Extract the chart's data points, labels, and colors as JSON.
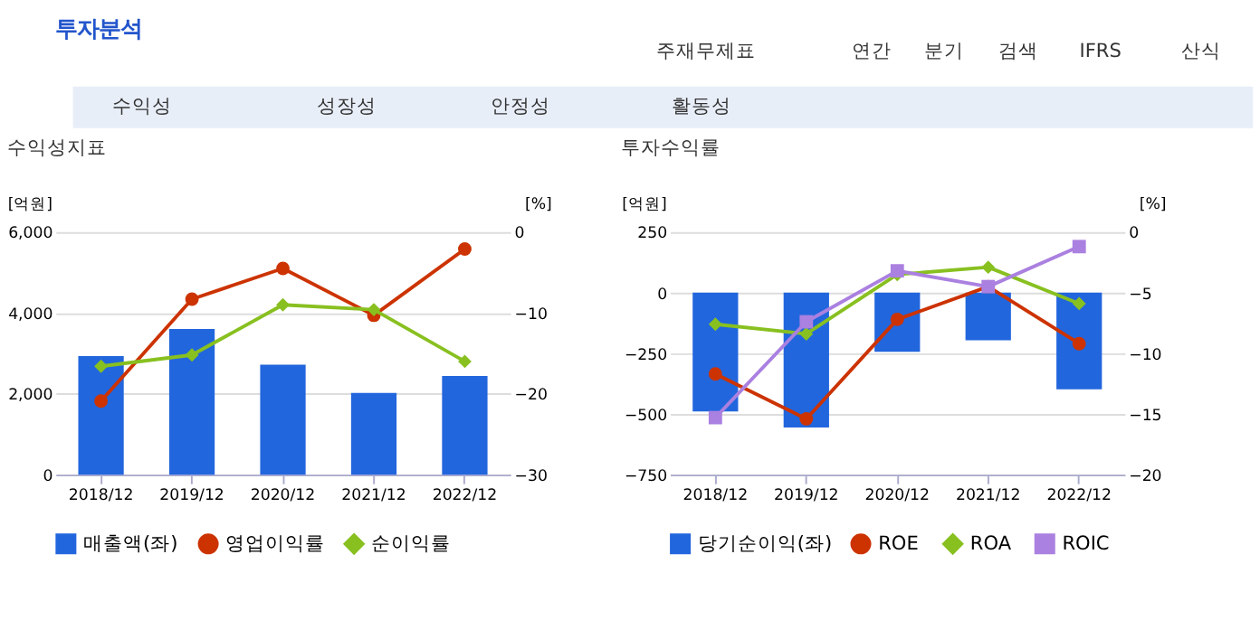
{
  "chart_data": [
    {
      "type": "other",
      "title": "투자분석",
      "annotations": [
        "주재무제표",
        "연간",
        "분기",
        "검색",
        "IFRS",
        "산식",
        "수익성",
        "성장성",
        "안정성",
        "활동성"
      ]
    },
    {
      "type": "bar",
      "title": "수익성지표",
      "categories": [
        "2018/12",
        "2019/12",
        "2020/12",
        "2021/12",
        "2022/12"
      ],
      "ylabel": "[억원]",
      "y2label": "[%]",
      "ylim": [
        0,
        6000
      ],
      "yticks": [
        0,
        {
          "value": 2000,
          "label": "2,000"
        },
        {
          "value": 4000,
          "label": "4,000"
        },
        {
          "value": 6000,
          "label": "6,000"
        }
      ],
      "y2lim": [
        -30,
        0
      ],
      "y2ticks": [
        -30,
        -20,
        -10,
        0
      ],
      "grid": "y",
      "legend": "bottom",
      "series": [
        {
          "name": "매출액(좌)",
          "type": "bar",
          "color": "#2266dd",
          "marker": "square",
          "values": [
            2930,
            3600,
            2720,
            2020,
            2440
          ]
        },
        {
          "name": "영업이익률",
          "type": "line",
          "axis": "y2",
          "color": "#cc3300",
          "marker": "circle",
          "values": [
            -20.9,
            -8.3,
            -4.5,
            -10.3,
            -2.1
          ]
        },
        {
          "name": "순이익률",
          "type": "line",
          "axis": "y2",
          "color": "#88c020",
          "marker": "diamond",
          "values": [
            -16.6,
            -15.2,
            -9.0,
            -9.6,
            -16.0
          ]
        }
      ]
    },
    {
      "type": "bar",
      "title": "투자수익률",
      "categories": [
        "2018/12",
        "2019/12",
        "2020/12",
        "2021/12",
        "2022/12"
      ],
      "ylabel": "[억원]",
      "y2label": "[%]",
      "ylim": [
        -750,
        250
      ],
      "yticks": [
        -750,
        -500,
        -250,
        0,
        250
      ],
      "y2lim": [
        -20,
        0
      ],
      "y2ticks": [
        -20,
        -15,
        -10,
        -5,
        0
      ],
      "grid": "y",
      "legend": "bottom",
      "series": [
        {
          "name": "당기순이익(좌)",
          "type": "bar",
          "color": "#2266dd",
          "marker": "square",
          "values": [
            -490,
            -556,
            -244,
            -196,
            -398
          ]
        },
        {
          "name": "ROE",
          "type": "line",
          "axis": "y2",
          "color": "#cc3300",
          "marker": "circle",
          "values": [
            -11.7,
            -15.4,
            -7.2,
            -4.5,
            -9.2
          ]
        },
        {
          "name": "ROA",
          "type": "line",
          "axis": "y2",
          "color": "#88c020",
          "marker": "diamond",
          "values": [
            -7.6,
            -8.4,
            -3.5,
            -2.9,
            -5.9
          ]
        },
        {
          "name": "ROIC",
          "type": "line",
          "axis": "y2",
          "color": "#aa80e0",
          "marker": "square",
          "values": [
            -15.3,
            -7.4,
            -3.2,
            -4.5,
            -1.2
          ]
        }
      ]
    }
  ]
}
